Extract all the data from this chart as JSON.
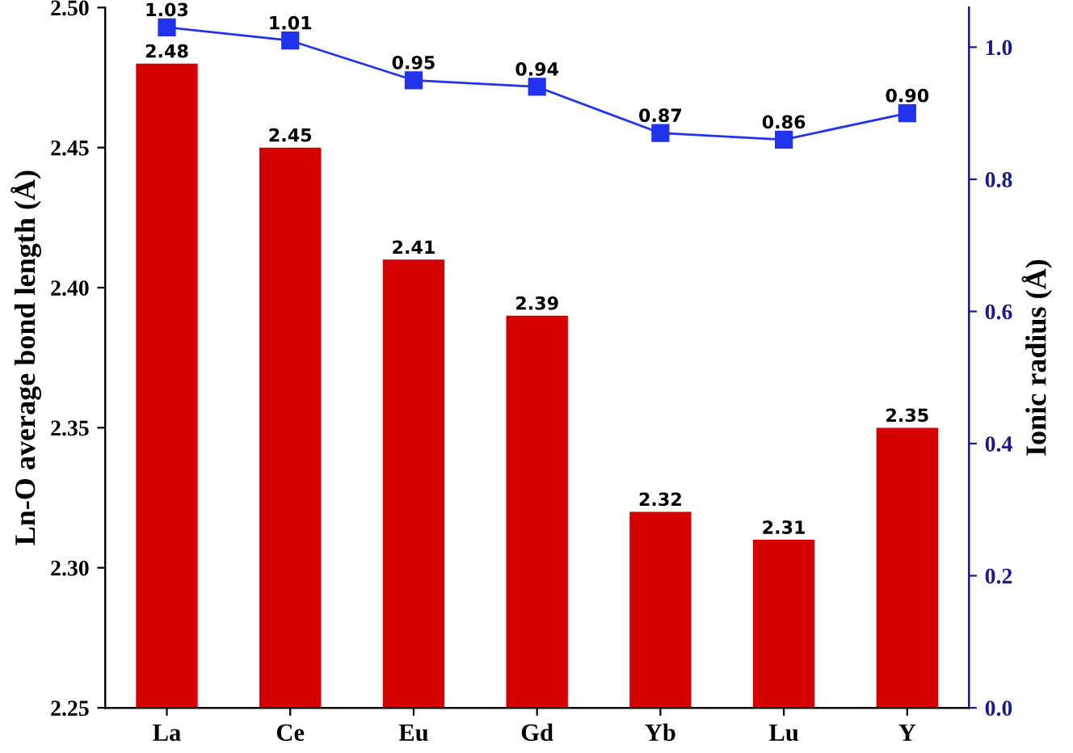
{
  "chart_data": {
    "type": "bar",
    "categories": [
      "La",
      "Ce",
      "Eu",
      "Gd",
      "Yb",
      "Lu",
      "Y"
    ],
    "ylabel": "Ln-O average bond length (Å)",
    "y2label": "Ionic radius (Å)",
    "series": [
      {
        "color": "#d40000",
        "values": [
          2.48,
          2.45,
          2.41,
          2.39,
          2.32,
          2.31,
          2.35
        ]
      },
      {
        "type": "line",
        "axis": "y2",
        "color": "#2233ee",
        "marker": "square",
        "values": [
          1.03,
          1.01,
          0.95,
          0.94,
          0.87,
          0.86,
          0.9
        ],
        "value_labels": [
          "1.03",
          "1.01",
          "0.95",
          "0.94",
          "0.87",
          "0.86",
          "0.90"
        ]
      }
    ],
    "ylim": [
      2.25,
      2.5
    ],
    "yticks": [
      2.25,
      {
        "value": 2.3,
        "label": "2.30"
      },
      2.35,
      {
        "value": 2.4,
        "label": "2.40"
      },
      2.45,
      {
        "value": 2.5,
        "label": "2.50"
      }
    ],
    "y2lim": [
      0,
      1.06
    ],
    "y2ticks": [
      {
        "value": 0,
        "label": "0.0"
      },
      {
        "value": 0.2,
        "label": "0.2"
      },
      {
        "value": 0.4,
        "label": "0.4"
      },
      {
        "value": 0.6,
        "label": "0.6"
      },
      {
        "value": 0.8,
        "label": "0.8"
      },
      {
        "value": 1.0,
        "label": "1.0"
      }
    ],
    "data_labels": true,
    "grid": false,
    "legend": false
  }
}
